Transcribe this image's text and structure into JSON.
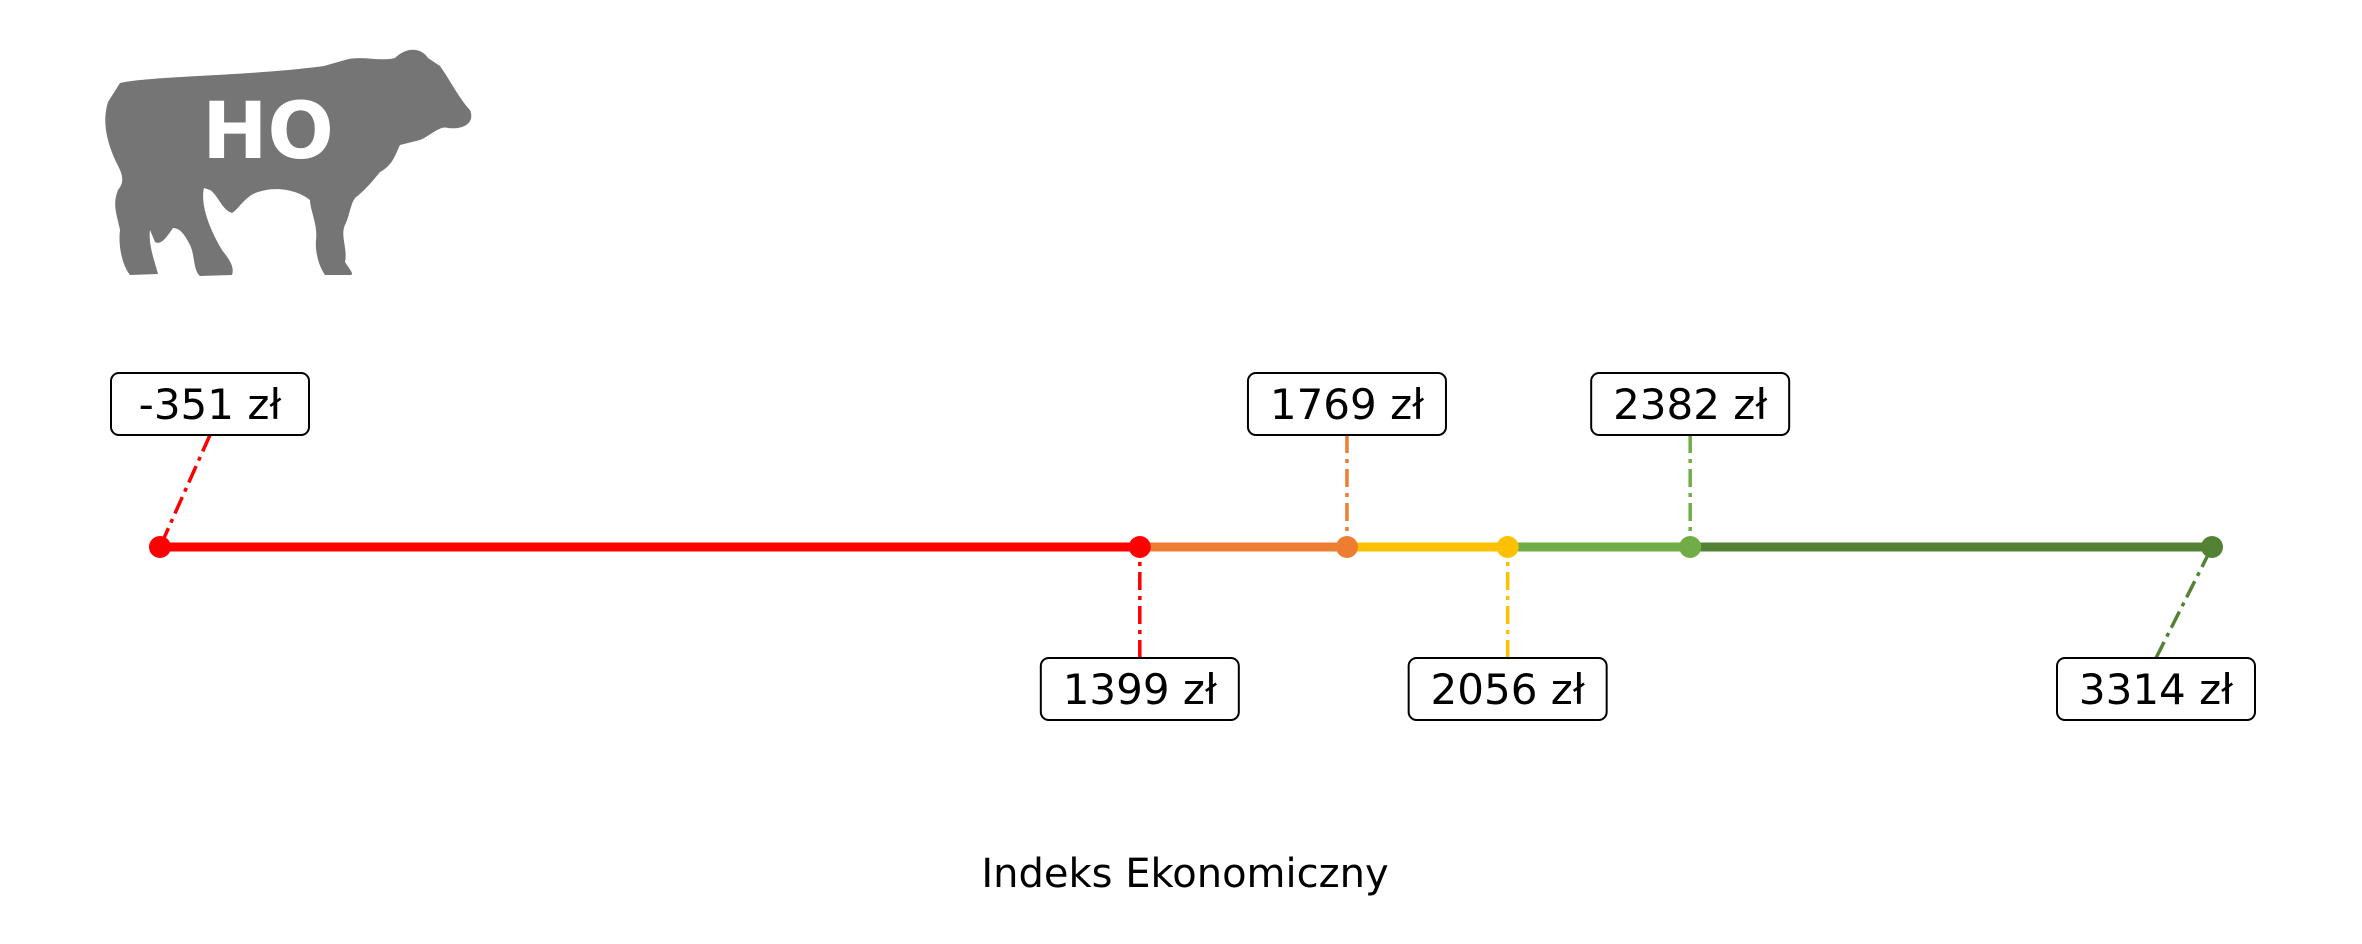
{
  "logo": {
    "text": "HO",
    "icon": "cow-silhouette-icon",
    "color": "#757575"
  },
  "chart_data": {
    "type": "line",
    "xlabel": "Indeks Ekonomiczny",
    "unit": "zł",
    "points": [
      {
        "value": -351,
        "label": "-351 zł",
        "color": "#ff0000",
        "position": "above"
      },
      {
        "value": 1399,
        "label": "1399 zł",
        "color": "#ff0000",
        "position": "below"
      },
      {
        "value": 1769,
        "label": "1769 zł",
        "color": "#ed7d31",
        "position": "above"
      },
      {
        "value": 2056,
        "label": "2056 zł",
        "color": "#ffc000",
        "position": "below"
      },
      {
        "value": 2382,
        "label": "2382 zł",
        "color": "#70ad47",
        "position": "above"
      },
      {
        "value": 3314,
        "label": "3314 zł",
        "color": "#548235",
        "position": "below"
      }
    ],
    "segments": [
      {
        "from": -351,
        "to": 1399,
        "color": "#ff0000"
      },
      {
        "from": 1399,
        "to": 1769,
        "color": "#ed7d31"
      },
      {
        "from": 1769,
        "to": 2056,
        "color": "#ffc000"
      },
      {
        "from": 2056,
        "to": 2382,
        "color": "#70ad47"
      },
      {
        "from": 2382,
        "to": 3314,
        "color": "#548235"
      }
    ]
  }
}
